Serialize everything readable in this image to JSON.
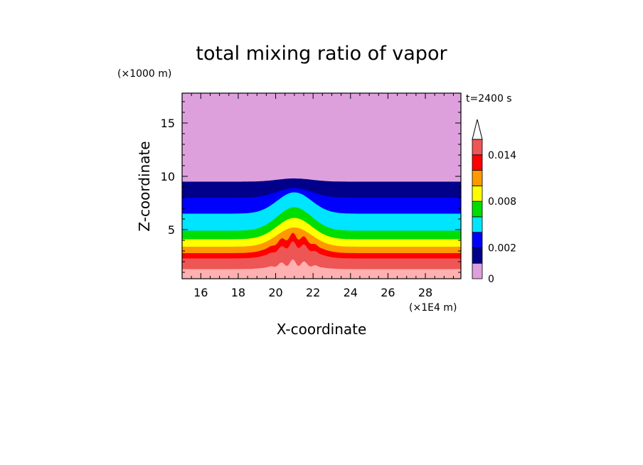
{
  "chart_data": {
    "type": "heatmap",
    "title": "total mixing ratio of vapor",
    "xlabel": "X-coordinate",
    "ylabel": "Z-coordinate",
    "x_unit": "(×1E4 m)",
    "y_unit": "(×1000 m)",
    "time_label": "t=2400 s",
    "xlim": [
      15,
      29.9
    ],
    "ylim": [
      0.4,
      17.8
    ],
    "x_ticks": [
      16,
      18,
      20,
      22,
      24,
      26,
      28
    ],
    "y_ticks": [
      5,
      10,
      15
    ],
    "colorbar": {
      "levels": [
        0,
        0.001,
        0.002,
        0.004,
        0.006,
        0.008,
        0.01,
        0.012,
        0.014,
        0.016
      ],
      "colors": [
        "#dda0dd",
        "#00008b",
        "#0000ff",
        "#00e5ff",
        "#00dd00",
        "#ffff00",
        "#ff9900",
        "#ff0000",
        "#ee5555",
        "#ffb0b0"
      ],
      "tick_labels": [
        "0",
        "0.002",
        "0.008",
        "0.014"
      ],
      "tick_values": [
        0,
        0.002,
        0.008,
        0.014
      ],
      "extend_top": true
    },
    "background_contours_z": [
      {
        "level": 0.014,
        "z": 1.3,
        "color": "#ffb0b0"
      },
      {
        "level": 0.012,
        "z": 2.3,
        "color": "#ee5555"
      },
      {
        "level": 0.01,
        "z": 2.8,
        "color": "#ff0000"
      },
      {
        "level": 0.008,
        "z": 3.4,
        "color": "#ff9900"
      },
      {
        "level": 0.006,
        "z": 4.1,
        "color": "#ffff00"
      },
      {
        "level": 0.004,
        "z": 4.9,
        "color": "#00dd00"
      },
      {
        "level": 0.002,
        "z": 6.5,
        "color": "#00e5ff"
      },
      {
        "level": 0.001,
        "z": 8.0,
        "color": "#0000ff"
      },
      {
        "level": 0.0,
        "z": 9.5,
        "color": "#00008b"
      }
    ],
    "perturbation_center_x": 21.0,
    "perturbation_width_x": 2.6
  }
}
